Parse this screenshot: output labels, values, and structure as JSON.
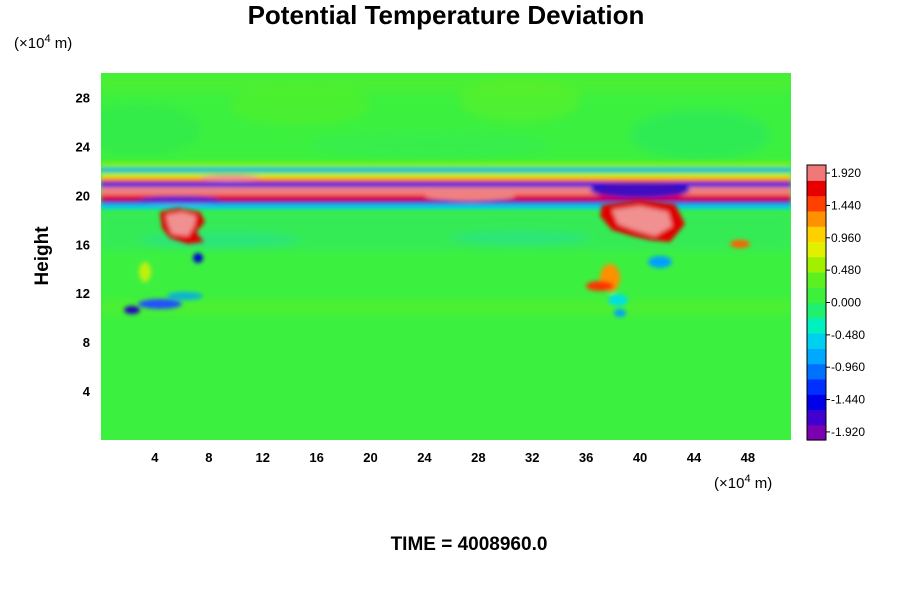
{
  "chart_data": {
    "type": "heatmap",
    "title": "Potential Temperature Deviation",
    "ylabel": "Height",
    "xlabel": "",
    "x_unit": {
      "prefix": "(×10",
      "exp": "4",
      "suffix": " m)"
    },
    "y_unit": {
      "prefix": "(×10",
      "exp": "4",
      "suffix": " m)"
    },
    "xlim": [
      0,
      51.2
    ],
    "ylim": [
      0,
      30
    ],
    "x_ticks": [
      4,
      8,
      12,
      16,
      20,
      24,
      28,
      32,
      36,
      40,
      44,
      48
    ],
    "y_ticks": [
      4,
      8,
      12,
      16,
      20,
      24,
      28
    ],
    "colorbar": {
      "range": [
        -2.04,
        2.04
      ],
      "colors": [
        "#7a00b0",
        "#3f00d0",
        "#0000e8",
        "#0030ff",
        "#0070ff",
        "#00a8ff",
        "#00d0f0",
        "#00f0c0",
        "#20f070",
        "#3cf03c",
        "#5cf020",
        "#a0f000",
        "#e0f000",
        "#ffd000",
        "#ff9000",
        "#ff4000",
        "#e80000",
        "#f07878"
      ],
      "tick_labels": [
        "1.920",
        "1.440",
        "0.960",
        "0.480",
        "0.000",
        "-0.480",
        "-0.960",
        "-1.440",
        "-1.920"
      ],
      "tick_values": [
        1.92,
        1.44,
        0.96,
        0.48,
        0.0,
        -0.48,
        -0.96,
        -1.44,
        -1.92
      ]
    },
    "time_label": "TIME = 4008960.0"
  }
}
